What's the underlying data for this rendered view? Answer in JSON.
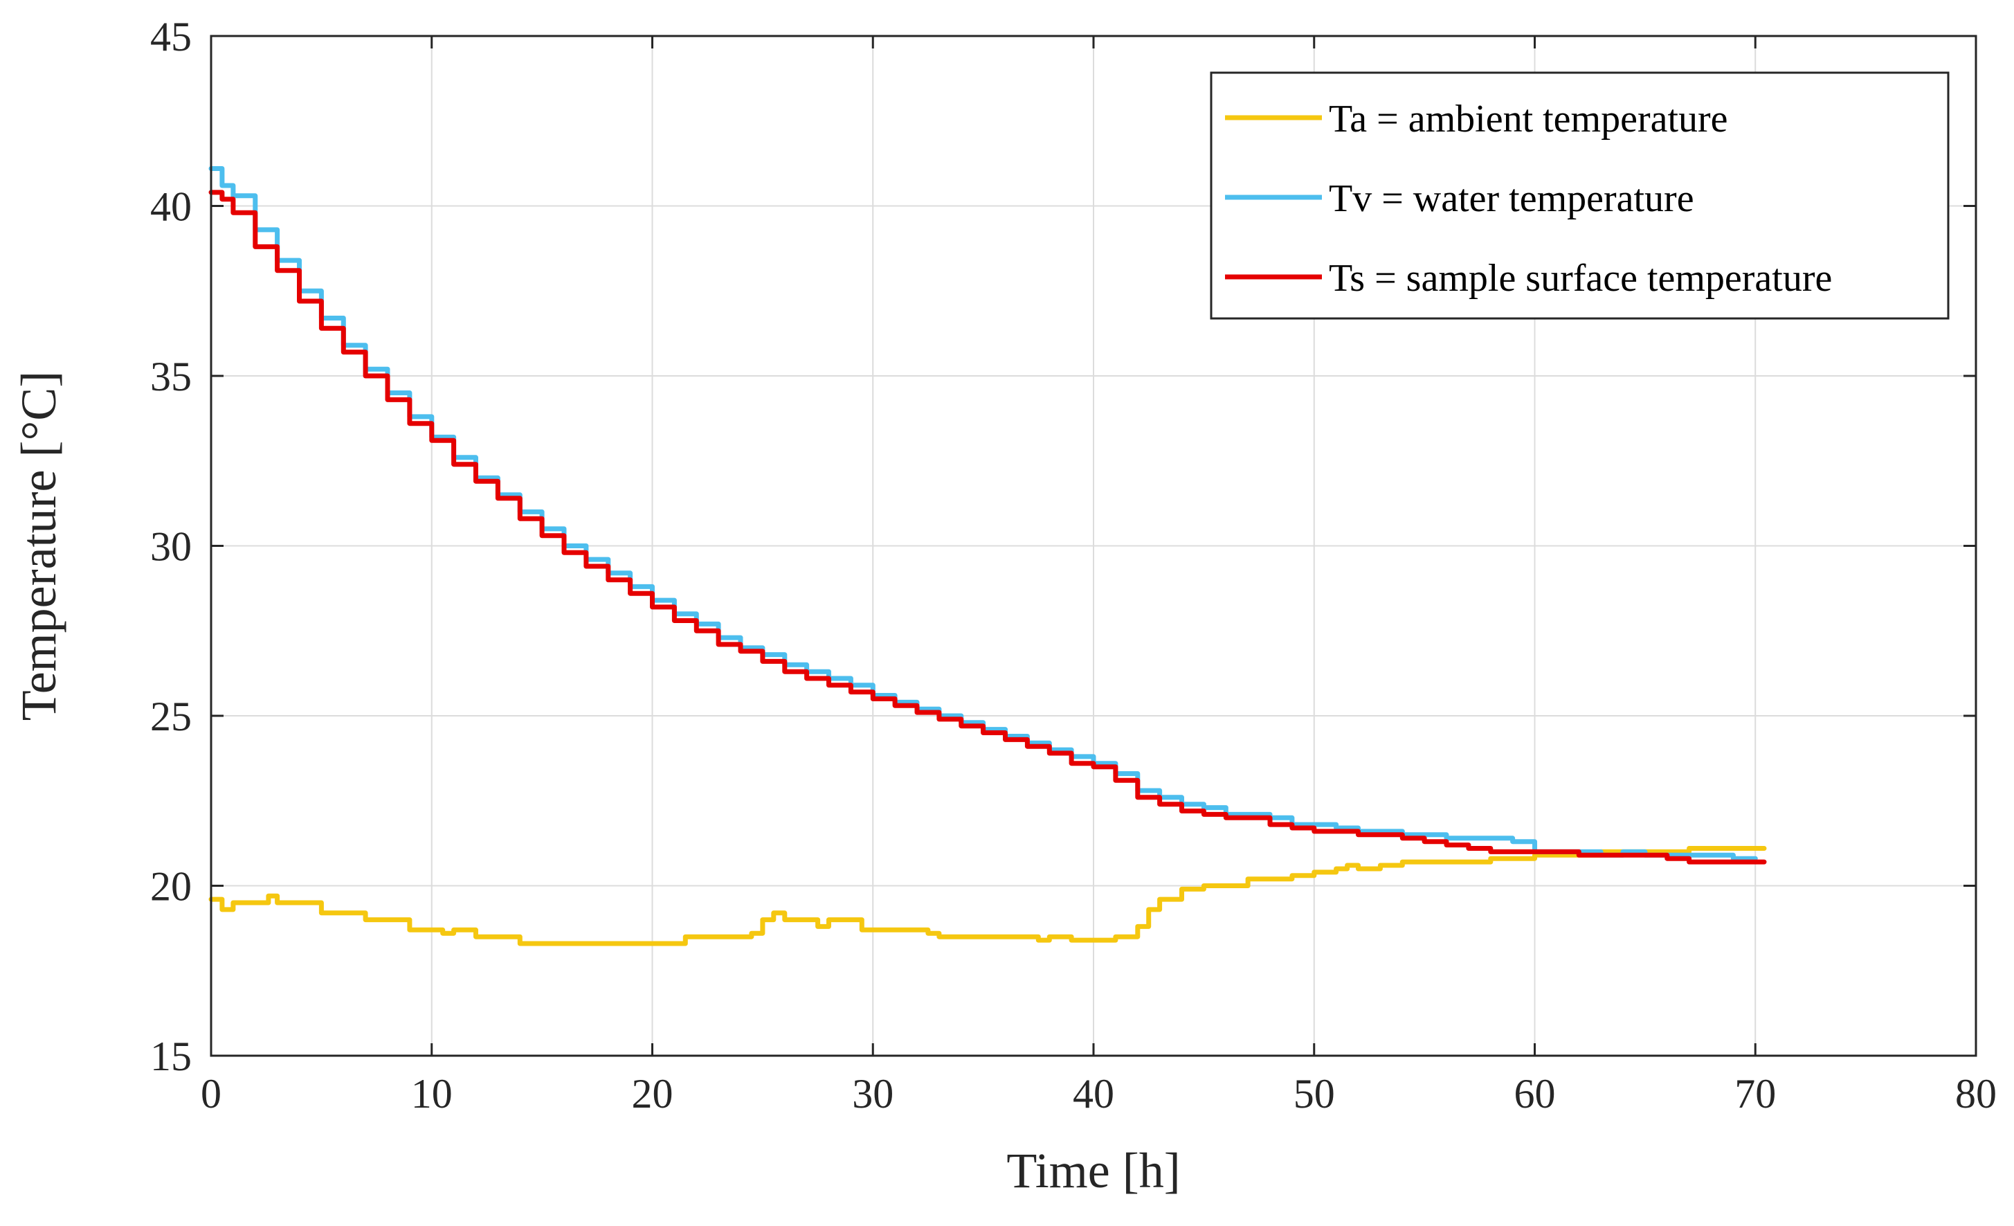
{
  "chart_data": {
    "type": "line",
    "title": "",
    "xlabel": "Time [h]",
    "ylabel": "Temperature [°C]",
    "xlim": [
      0,
      80
    ],
    "ylim": [
      15,
      45
    ],
    "xticks": [
      0,
      10,
      20,
      30,
      40,
      50,
      60,
      70,
      80
    ],
    "yticks": [
      15,
      20,
      25,
      30,
      35,
      40,
      45
    ],
    "xtick_labels": [
      "0",
      "10",
      "20",
      "30",
      "40",
      "50",
      "60",
      "70",
      "80"
    ],
    "ytick_labels": [
      "15",
      "20",
      "25",
      "30",
      "35",
      "40",
      "45"
    ],
    "grid": true,
    "legend_position": "top-right",
    "series": [
      {
        "name": "Ta = ambient temperature",
        "color": "#F5C710",
        "x": [
          0,
          0.5,
          1,
          2,
          2.6,
          3,
          4.6,
          5,
          6,
          7,
          8.5,
          9,
          10,
          10.5,
          11,
          12,
          13,
          14,
          15,
          16,
          17,
          18,
          19,
          20,
          21,
          21.5,
          22,
          23,
          24,
          24.5,
          25,
          25.5,
          26,
          27,
          27.5,
          28,
          29,
          29.5,
          30,
          31,
          32,
          32.5,
          33,
          34,
          35,
          36,
          37,
          37.5,
          38,
          39,
          40,
          41,
          41.5,
          42,
          42.5,
          43,
          44,
          45,
          46,
          47,
          48,
          49,
          50,
          51,
          51.5,
          52,
          53,
          54,
          55,
          56,
          57,
          58,
          59,
          60,
          61,
          62,
          63,
          64,
          65,
          66,
          67,
          68,
          69,
          70,
          70.4
        ],
        "values": [
          19.6,
          19.3,
          19.5,
          19.5,
          19.7,
          19.5,
          19.5,
          19.2,
          19.2,
          19.0,
          19.0,
          18.7,
          18.7,
          18.6,
          18.7,
          18.5,
          18.5,
          18.3,
          18.3,
          18.3,
          18.3,
          18.3,
          18.3,
          18.3,
          18.3,
          18.5,
          18.5,
          18.5,
          18.5,
          18.6,
          19.0,
          19.2,
          19.0,
          19.0,
          18.8,
          19.0,
          19.0,
          18.7,
          18.7,
          18.7,
          18.7,
          18.6,
          18.5,
          18.5,
          18.5,
          18.5,
          18.5,
          18.4,
          18.5,
          18.4,
          18.4,
          18.5,
          18.5,
          18.8,
          19.3,
          19.6,
          19.9,
          20.0,
          20.0,
          20.2,
          20.2,
          20.3,
          20.4,
          20.5,
          20.6,
          20.5,
          20.6,
          20.7,
          20.7,
          20.7,
          20.7,
          20.8,
          20.8,
          20.9,
          20.9,
          20.9,
          21.0,
          21.0,
          21.0,
          21.0,
          21.1,
          21.1,
          21.1,
          21.1,
          21.1
        ]
      },
      {
        "name": "Tv = water temperature",
        "color": "#4DBEEE",
        "x": [
          0,
          0.5,
          1,
          2,
          3,
          4,
          5,
          6,
          7,
          8,
          9,
          10,
          11,
          12,
          13,
          14,
          15,
          16,
          17,
          18,
          19,
          20,
          21,
          22,
          23,
          24,
          25,
          26,
          27,
          28,
          29,
          30,
          31,
          32,
          33,
          34,
          35,
          36,
          37,
          38,
          39,
          40,
          41,
          42,
          43,
          44,
          45,
          46,
          47,
          48,
          49,
          50,
          51,
          52,
          53,
          54,
          55,
          56,
          57,
          58,
          59,
          60,
          61,
          62,
          63,
          64,
          65,
          66,
          67,
          68,
          69,
          70
        ],
        "values": [
          41.1,
          40.6,
          40.3,
          39.3,
          38.4,
          37.5,
          36.7,
          35.9,
          35.2,
          34.5,
          33.8,
          33.2,
          32.6,
          32.0,
          31.5,
          31.0,
          30.5,
          30.0,
          29.6,
          29.2,
          28.8,
          28.4,
          28.0,
          27.7,
          27.3,
          27.0,
          26.8,
          26.5,
          26.3,
          26.1,
          25.9,
          25.6,
          25.4,
          25.2,
          25.0,
          24.8,
          24.6,
          24.4,
          24.2,
          24.0,
          23.8,
          23.6,
          23.3,
          22.8,
          22.6,
          22.4,
          22.3,
          22.1,
          22.1,
          22.0,
          21.8,
          21.8,
          21.7,
          21.6,
          21.6,
          21.5,
          21.5,
          21.4,
          21.4,
          21.4,
          21.3,
          21.0,
          21.0,
          21.0,
          20.9,
          21.0,
          20.9,
          20.9,
          20.9,
          20.9,
          20.8,
          20.8
        ]
      },
      {
        "name": "Ts = sample surface temperature",
        "color": "#E50000",
        "x": [
          0,
          0.5,
          1,
          2,
          3,
          4,
          5,
          6,
          7,
          8,
          9,
          10,
          11,
          12,
          13,
          14,
          15,
          16,
          17,
          18,
          19,
          20,
          21,
          22,
          23,
          24,
          25,
          26,
          27,
          28,
          29,
          30,
          31,
          32,
          33,
          34,
          35,
          36,
          37,
          38,
          39,
          40,
          41,
          42,
          43,
          44,
          45,
          46,
          47,
          48,
          49,
          50,
          51,
          52,
          53,
          54,
          55,
          56,
          57,
          58,
          59,
          60,
          61,
          62,
          63,
          64,
          65,
          66,
          67,
          68,
          69,
          70,
          70.4
        ],
        "values": [
          40.4,
          40.2,
          39.8,
          38.8,
          38.1,
          37.2,
          36.4,
          35.7,
          35.0,
          34.3,
          33.6,
          33.1,
          32.4,
          31.9,
          31.4,
          30.8,
          30.3,
          29.8,
          29.4,
          29.0,
          28.6,
          28.2,
          27.8,
          27.5,
          27.1,
          26.9,
          26.6,
          26.3,
          26.1,
          25.9,
          25.7,
          25.5,
          25.3,
          25.1,
          24.9,
          24.7,
          24.5,
          24.3,
          24.1,
          23.9,
          23.6,
          23.5,
          23.1,
          22.6,
          22.4,
          22.2,
          22.1,
          22.0,
          22.0,
          21.8,
          21.7,
          21.6,
          21.6,
          21.5,
          21.5,
          21.4,
          21.3,
          21.2,
          21.1,
          21.0,
          21.0,
          21.0,
          21.0,
          20.9,
          20.9,
          20.9,
          20.9,
          20.8,
          20.7,
          20.7,
          20.7,
          20.7,
          20.7
        ]
      }
    ]
  }
}
